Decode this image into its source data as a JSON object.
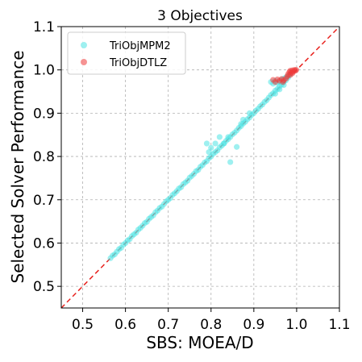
{
  "chart_data": {
    "type": "scatter",
    "title": "3 Objectives",
    "xlabel": "SBS: MOEA/D",
    "ylabel": "Selected Solver Performance",
    "xlim": [
      0.45,
      1.1
    ],
    "ylim": [
      0.45,
      1.1
    ],
    "xticks": [
      0.5,
      0.6,
      0.7,
      0.8,
      0.9,
      1.0,
      1.1
    ],
    "yticks": [
      0.5,
      0.6,
      0.7,
      0.8,
      0.9,
      1.0,
      1.1
    ],
    "xtick_labels": [
      "0.5",
      "0.6",
      "0.7",
      "0.8",
      "0.9",
      "1.0",
      "1.1"
    ],
    "ytick_labels": [
      "0.5",
      "0.6",
      "0.7",
      "0.8",
      "0.9",
      "1.0",
      "1.1"
    ],
    "grid": true,
    "legend": "top-left",
    "reference_line": {
      "style": "dashed",
      "color": "#e8231f",
      "from": [
        0.45,
        0.45
      ],
      "to": [
        1.1,
        1.1
      ]
    },
    "series": [
      {
        "name": "TriObjMPM2",
        "color": "#4fe3e3",
        "opacity": 0.55,
        "points": [
          [
            0.565,
            0.565
          ],
          [
            0.57,
            0.571
          ],
          [
            0.575,
            0.574
          ],
          [
            0.58,
            0.58
          ],
          [
            0.585,
            0.586
          ],
          [
            0.59,
            0.589
          ],
          [
            0.595,
            0.596
          ],
          [
            0.6,
            0.6
          ],
          [
            0.605,
            0.606
          ],
          [
            0.61,
            0.609
          ],
          [
            0.615,
            0.616
          ],
          [
            0.62,
            0.62
          ],
          [
            0.625,
            0.624
          ],
          [
            0.63,
            0.631
          ],
          [
            0.635,
            0.635
          ],
          [
            0.64,
            0.64
          ],
          [
            0.645,
            0.646
          ],
          [
            0.65,
            0.649
          ],
          [
            0.655,
            0.656
          ],
          [
            0.66,
            0.66
          ],
          [
            0.665,
            0.664
          ],
          [
            0.67,
            0.671
          ],
          [
            0.675,
            0.675
          ],
          [
            0.68,
            0.681
          ],
          [
            0.685,
            0.684
          ],
          [
            0.69,
            0.69
          ],
          [
            0.695,
            0.696
          ],
          [
            0.7,
            0.7
          ],
          [
            0.705,
            0.704
          ],
          [
            0.71,
            0.711
          ],
          [
            0.715,
            0.715
          ],
          [
            0.72,
            0.72
          ],
          [
            0.725,
            0.726
          ],
          [
            0.73,
            0.729
          ],
          [
            0.735,
            0.736
          ],
          [
            0.74,
            0.74
          ],
          [
            0.745,
            0.744
          ],
          [
            0.75,
            0.751
          ],
          [
            0.755,
            0.755
          ],
          [
            0.76,
            0.76
          ],
          [
            0.765,
            0.766
          ],
          [
            0.77,
            0.769
          ],
          [
            0.775,
            0.776
          ],
          [
            0.78,
            0.78
          ],
          [
            0.785,
            0.786
          ],
          [
            0.79,
            0.789
          ],
          [
            0.795,
            0.796
          ],
          [
            0.8,
            0.8
          ],
          [
            0.805,
            0.806
          ],
          [
            0.81,
            0.81
          ],
          [
            0.815,
            0.814
          ],
          [
            0.82,
            0.821
          ],
          [
            0.825,
            0.825
          ],
          [
            0.83,
            0.83
          ],
          [
            0.835,
            0.836
          ],
          [
            0.84,
            0.84
          ],
          [
            0.845,
            0.845
          ],
          [
            0.85,
            0.851
          ],
          [
            0.855,
            0.855
          ],
          [
            0.86,
            0.86
          ],
          [
            0.865,
            0.866
          ],
          [
            0.87,
            0.87
          ],
          [
            0.875,
            0.876
          ],
          [
            0.88,
            0.88
          ],
          [
            0.885,
            0.886
          ],
          [
            0.89,
            0.89
          ],
          [
            0.895,
            0.896
          ],
          [
            0.9,
            0.9
          ],
          [
            0.905,
            0.906
          ],
          [
            0.91,
            0.91
          ],
          [
            0.915,
            0.916
          ],
          [
            0.92,
            0.92
          ],
          [
            0.925,
            0.926
          ],
          [
            0.93,
            0.93
          ],
          [
            0.935,
            0.936
          ],
          [
            0.94,
            0.942
          ],
          [
            0.945,
            0.946
          ],
          [
            0.95,
            0.952
          ],
          [
            0.955,
            0.956
          ],
          [
            0.96,
            0.962
          ],
          [
            0.965,
            0.966
          ],
          [
            0.97,
            0.972
          ],
          [
            0.975,
            0.976
          ],
          [
            0.98,
            0.982
          ],
          [
            0.79,
            0.83
          ],
          [
            0.795,
            0.81
          ],
          [
            0.8,
            0.82
          ],
          [
            0.81,
            0.83
          ],
          [
            0.82,
            0.845
          ],
          [
            0.83,
            0.83
          ],
          [
            0.84,
            0.845
          ],
          [
            0.845,
            0.787
          ],
          [
            0.86,
            0.822
          ],
          [
            0.87,
            0.875
          ],
          [
            0.875,
            0.885
          ],
          [
            0.89,
            0.9
          ],
          [
            0.94,
            0.972
          ],
          [
            0.945,
            0.968
          ],
          [
            0.95,
            0.975
          ],
          [
            0.955,
            0.97
          ],
          [
            0.96,
            0.973
          ],
          [
            0.965,
            0.978
          ],
          [
            0.97,
            0.98
          ],
          [
            0.975,
            0.983
          ],
          [
            0.98,
            0.986
          ],
          [
            0.985,
            0.99
          ],
          [
            0.97,
            0.965
          ],
          [
            0.96,
            0.955
          ],
          [
            0.95,
            0.945
          ]
        ]
      },
      {
        "name": "TriObjDTLZ",
        "color": "#ee3b3b",
        "opacity": 0.55,
        "points": [
          [
            0.945,
            0.977
          ],
          [
            0.95,
            0.972
          ],
          [
            0.955,
            0.978
          ],
          [
            0.96,
            0.975
          ],
          [
            0.965,
            0.979
          ],
          [
            0.97,
            0.976
          ],
          [
            0.975,
            0.98
          ],
          [
            0.98,
            0.99
          ],
          [
            0.983,
            0.995
          ],
          [
            0.985,
            0.998
          ],
          [
            0.988,
            0.994
          ],
          [
            0.99,
            0.999
          ],
          [
            0.992,
            0.996
          ],
          [
            0.995,
            1.0
          ],
          [
            0.997,
            0.998
          ],
          [
            0.999,
            1.0
          ],
          [
            0.985,
            0.988
          ],
          [
            0.99,
            0.992
          ],
          [
            0.978,
            0.985
          ],
          [
            0.968,
            0.972
          ]
        ]
      }
    ]
  }
}
